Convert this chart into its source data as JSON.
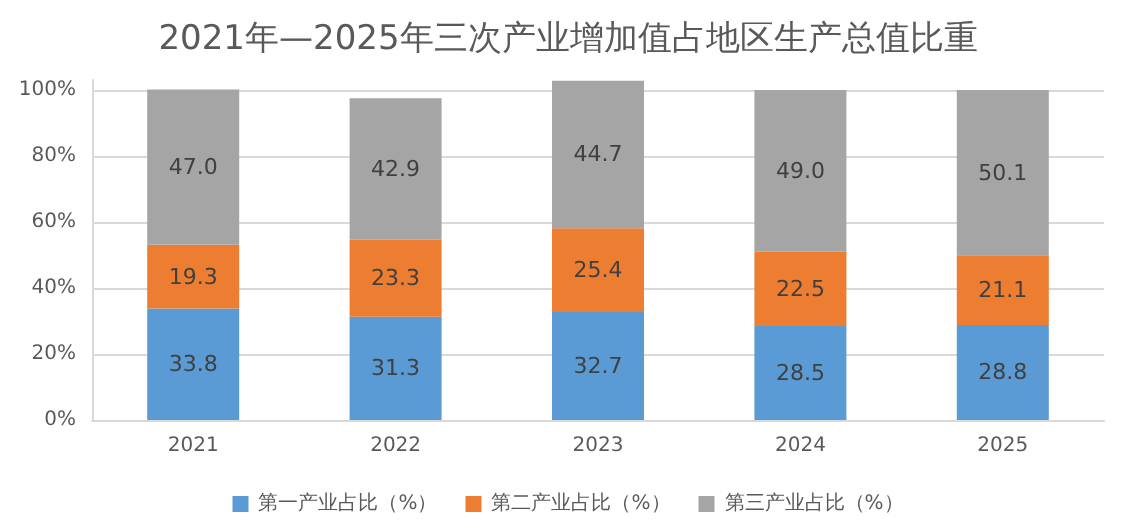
{
  "chart_data": {
    "type": "bar",
    "title": "2021年—2025年三次产业增加值占地区生产总值比重",
    "categories": [
      "2021",
      "2022",
      "2023",
      "2024",
      "2025"
    ],
    "stacked": true,
    "series": [
      {
        "name": "第一产业占比（%）",
        "color": "#5b9bd5",
        "values": [
          33.8,
          31.3,
          32.7,
          28.5,
          28.8
        ],
        "value_labels": [
          "33.8",
          "31.3",
          "32.7",
          "28.5",
          "28.8"
        ]
      },
      {
        "name": "第二产业占比（%）",
        "color": "#ed7d31",
        "values": [
          19.3,
          23.3,
          25.4,
          22.5,
          21.1
        ],
        "value_labels": [
          "19.3",
          "23.3",
          "25.4",
          "22.5",
          "21.1"
        ]
      },
      {
        "name": "第三产业占比（%）",
        "color": "#a5a5a5",
        "values": [
          47.0,
          42.9,
          44.7,
          49.0,
          50.1
        ],
        "value_labels": [
          "47.0",
          "42.9",
          "44.7",
          "49.0",
          "50.1"
        ]
      }
    ],
    "ylim": [
      0,
      103
    ],
    "yticks": [
      {
        "value": 0,
        "label": "0%"
      },
      {
        "value": 20,
        "label": "20%"
      },
      {
        "value": 40,
        "label": "40%"
      },
      {
        "value": 60,
        "label": "60%"
      },
      {
        "value": 80,
        "label": "80%"
      },
      {
        "value": 100,
        "label": "100%"
      }
    ],
    "grid": "y",
    "legend": "bottom"
  }
}
